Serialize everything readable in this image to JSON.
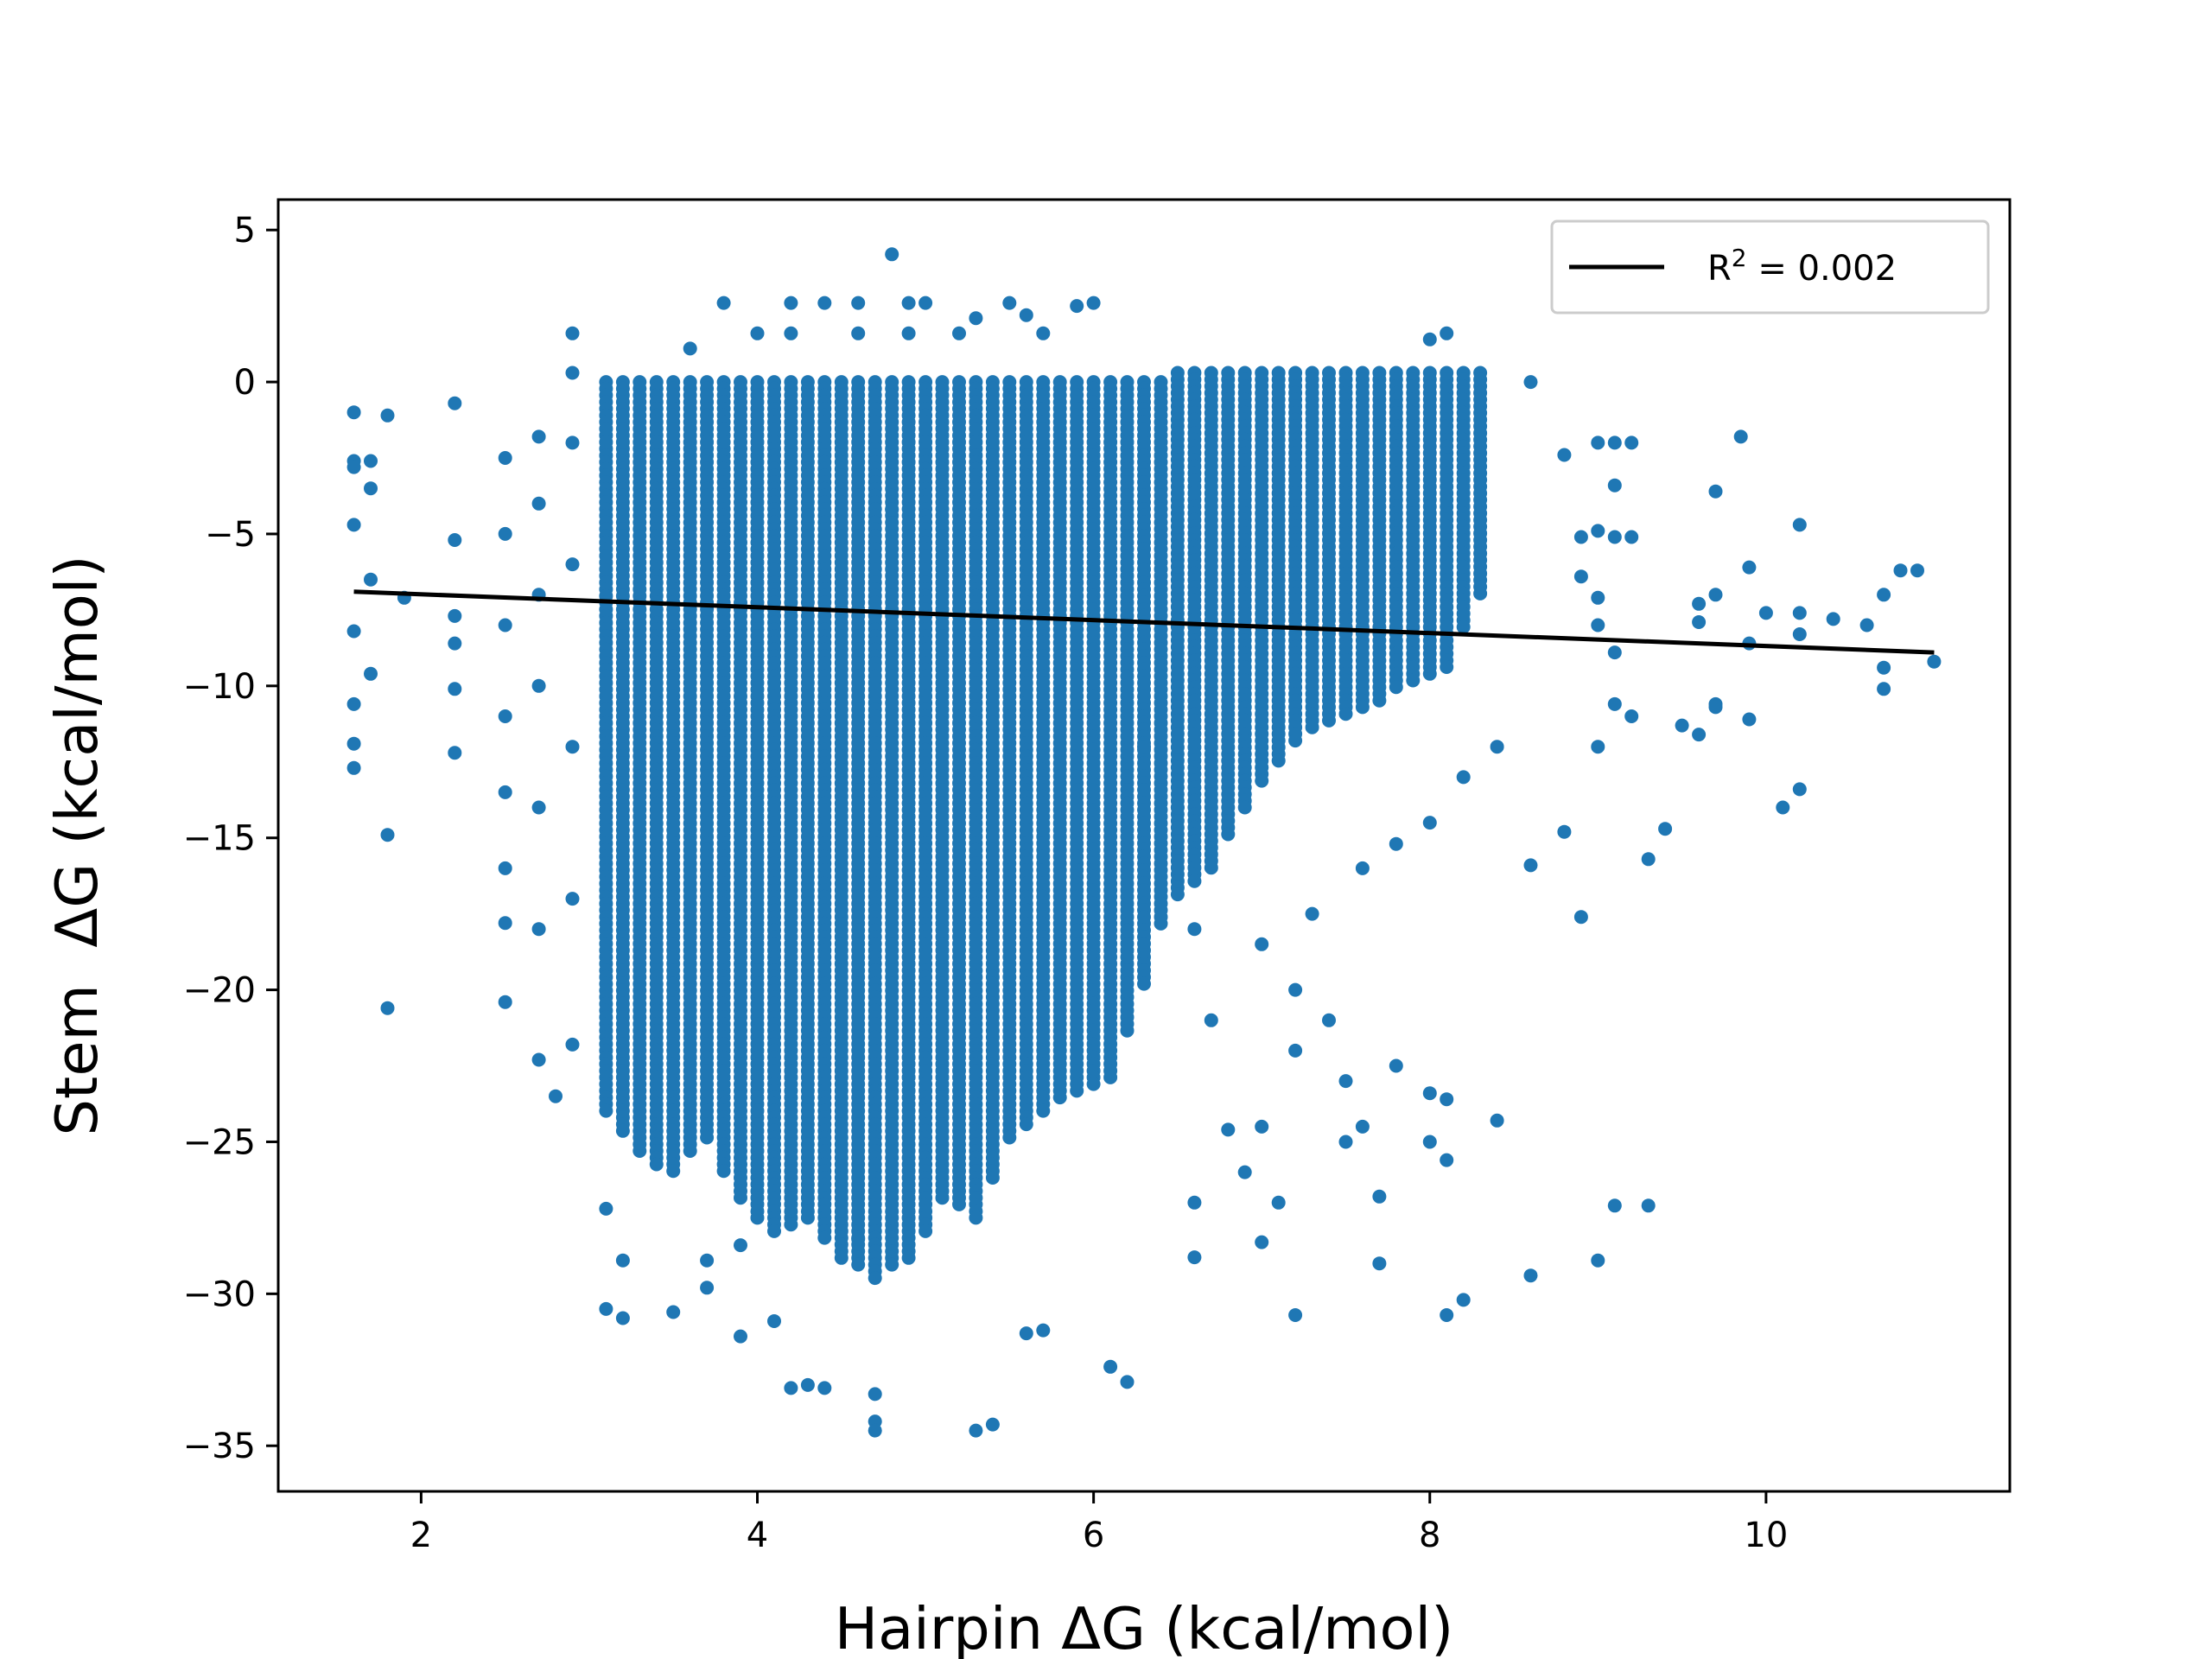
{
  "chart_data": {
    "type": "scatter",
    "title": "",
    "xlabel": "Hairpin ΔG (kcal/mol)",
    "ylabel": "Stem  ΔG (kcal/mol)",
    "xlim": [
      1.15,
      11.45
    ],
    "ylim": [
      -36.5,
      6.0
    ],
    "xticks": [
      2,
      4,
      6,
      8,
      10
    ],
    "yticks": [
      5,
      0,
      -5,
      -10,
      -15,
      -20,
      -25,
      -30,
      -35
    ],
    "xtick_labels": [
      "2",
      "4",
      "6",
      "8",
      "10"
    ],
    "ytick_labels": [
      "5",
      "0",
      "−5",
      "−10",
      "−15",
      "−20",
      "−25",
      "−30",
      "−35"
    ],
    "grid": false,
    "legend_position": "top-right",
    "legend": {
      "entries": [
        {
          "label_base": "R",
          "label_sup": "2",
          "label_rest": " = 0.002",
          "color": "#000000",
          "kind": "line"
        }
      ]
    },
    "series": [
      {
        "kind": "scatter",
        "color": "#1f77b4",
        "points": [
          [
            1.6,
            -1.0
          ],
          [
            1.6,
            -2.6
          ],
          [
            1.6,
            -2.8
          ],
          [
            1.6,
            -4.7
          ],
          [
            1.6,
            -8.2
          ],
          [
            1.6,
            -10.6
          ],
          [
            1.6,
            -11.9
          ],
          [
            1.6,
            -12.7
          ],
          [
            1.7,
            -2.6
          ],
          [
            1.7,
            -3.5
          ],
          [
            1.7,
            -6.5
          ],
          [
            1.7,
            -9.6
          ],
          [
            1.8,
            -1.1
          ],
          [
            1.8,
            -14.9
          ],
          [
            1.8,
            -20.6
          ],
          [
            1.9,
            -7.1
          ],
          [
            2.2,
            -0.7
          ],
          [
            2.2,
            -5.2
          ],
          [
            2.2,
            -7.7
          ],
          [
            2.2,
            -8.6
          ],
          [
            2.2,
            -10.1
          ],
          [
            2.2,
            -12.2
          ],
          [
            2.5,
            -2.5
          ],
          [
            2.5,
            -5.0
          ],
          [
            2.5,
            -8.0
          ],
          [
            2.5,
            -11.0
          ],
          [
            2.5,
            -13.5
          ],
          [
            2.5,
            -16.0
          ],
          [
            2.5,
            -17.8
          ],
          [
            2.5,
            -20.4
          ],
          [
            2.7,
            -1.8
          ],
          [
            2.7,
            -4.0
          ],
          [
            2.7,
            -7.0
          ],
          [
            2.7,
            -10.0
          ],
          [
            2.7,
            -14.0
          ],
          [
            2.7,
            -18.0
          ],
          [
            2.7,
            -22.3
          ],
          [
            2.9,
            1.6
          ],
          [
            2.9,
            0.3
          ],
          [
            2.9,
            -2.0
          ],
          [
            2.9,
            -6.0
          ],
          [
            2.9,
            -12.0
          ],
          [
            2.9,
            -17.0
          ],
          [
            2.9,
            -21.8
          ],
          [
            2.8,
            -23.5
          ],
          [
            3.9,
            -28.4
          ],
          [
            3.9,
            -31.4
          ],
          [
            4.1,
            -30.9
          ],
          [
            4.2,
            -33.1
          ],
          [
            4.3,
            -33.0
          ],
          [
            4.4,
            -33.1
          ],
          [
            4.7,
            -33.3
          ],
          [
            4.7,
            -34.2
          ],
          [
            4.7,
            -34.5
          ],
          [
            5.3,
            -34.5
          ],
          [
            5.4,
            -34.3
          ],
          [
            5.6,
            -31.3
          ],
          [
            5.7,
            -31.2
          ],
          [
            6.1,
            -32.4
          ],
          [
            6.2,
            -32.9
          ],
          [
            3.1,
            -30.5
          ],
          [
            3.2,
            -30.8
          ],
          [
            3.5,
            -30.6
          ],
          [
            3.1,
            -27.2
          ],
          [
            3.2,
            -28.9
          ],
          [
            3.7,
            -28.9
          ],
          [
            3.7,
            -29.8
          ],
          [
            4.6,
            -28.2
          ],
          [
            4.8,
            -4.2
          ],
          [
            3.8,
            2.6
          ],
          [
            4.2,
            2.6
          ],
          [
            4.4,
            2.6
          ],
          [
            4.6,
            2.6
          ],
          [
            4.9,
            2.6
          ],
          [
            5.0,
            2.6
          ],
          [
            5.5,
            2.6
          ],
          [
            5.9,
            2.5
          ],
          [
            6.0,
            2.6
          ],
          [
            5.3,
            2.1
          ],
          [
            5.6,
            2.2
          ],
          [
            3.6,
            1.1
          ],
          [
            4.0,
            1.6
          ],
          [
            4.2,
            1.6
          ],
          [
            4.6,
            1.6
          ],
          [
            4.9,
            1.6
          ],
          [
            5.2,
            1.6
          ],
          [
            5.7,
            1.6
          ],
          [
            4.8,
            4.2
          ],
          [
            6.3,
            -12.0
          ],
          [
            6.5,
            -14.0
          ],
          [
            6.6,
            -18.0
          ],
          [
            6.7,
            -21.0
          ],
          [
            6.8,
            -24.6
          ],
          [
            6.9,
            -26.0
          ],
          [
            7.0,
            -24.5
          ],
          [
            7.1,
            -27.0
          ],
          [
            7.2,
            -30.7
          ],
          [
            7.0,
            -28.3
          ],
          [
            7.5,
            -23.0
          ],
          [
            7.6,
            -24.5
          ],
          [
            7.7,
            -26.8
          ],
          [
            7.8,
            -22.5
          ],
          [
            8.0,
            -25.0
          ],
          [
            8.1,
            -25.6
          ],
          [
            8.1,
            -30.7
          ],
          [
            8.2,
            -30.2
          ],
          [
            8.0,
            -23.4
          ],
          [
            8.1,
            -23.6
          ],
          [
            8.4,
            -24.3
          ],
          [
            8.6,
            -29.4
          ],
          [
            9.0,
            -28.9
          ],
          [
            9.1,
            -27.1
          ],
          [
            9.3,
            -27.1
          ],
          [
            7.2,
            -20.0
          ],
          [
            7.4,
            -21.0
          ],
          [
            7.0,
            -18.5
          ],
          [
            7.3,
            -17.5
          ],
          [
            7.6,
            -16.0
          ],
          [
            7.8,
            -15.2
          ],
          [
            8.0,
            -14.5
          ],
          [
            8.2,
            -13.0
          ],
          [
            8.4,
            -12.0
          ],
          [
            8.6,
            -15.9
          ],
          [
            8.8,
            -14.8
          ],
          [
            8.9,
            -17.6
          ],
          [
            9.0,
            -12.0
          ],
          [
            9.1,
            -10.6
          ],
          [
            9.2,
            -11.0
          ],
          [
            9.3,
            -15.7
          ],
          [
            9.4,
            -14.7
          ],
          [
            9.5,
            -11.3
          ],
          [
            9.6,
            -11.6
          ],
          [
            9.7,
            -10.6
          ],
          [
            9.7,
            -10.7
          ],
          [
            9.9,
            -11.1
          ],
          [
            10.1,
            -14.0
          ],
          [
            10.2,
            -13.4
          ],
          [
            9.0,
            -8.0
          ],
          [
            9.1,
            -8.9
          ],
          [
            9.9,
            -8.6
          ],
          [
            10.0,
            -7.6
          ],
          [
            10.2,
            -7.6
          ],
          [
            10.2,
            -8.3
          ],
          [
            10.4,
            -7.8
          ],
          [
            10.6,
            -8.0
          ],
          [
            10.7,
            -9.4
          ],
          [
            10.7,
            -10.1
          ],
          [
            10.8,
            -6.2
          ],
          [
            10.9,
            -6.2
          ],
          [
            11.0,
            -9.2
          ],
          [
            10.7,
            -7.0
          ],
          [
            9.6,
            -7.3
          ],
          [
            9.6,
            -7.9
          ],
          [
            9.7,
            -7.0
          ],
          [
            9.0,
            -7.1
          ],
          [
            8.9,
            -6.4
          ],
          [
            8.9,
            -5.1
          ],
          [
            9.0,
            -4.9
          ],
          [
            9.1,
            -5.1
          ],
          [
            9.2,
            -5.1
          ],
          [
            9.1,
            -3.4
          ],
          [
            9.0,
            -2.0
          ],
          [
            9.1,
            -2.0
          ],
          [
            9.2,
            -2.0
          ],
          [
            8.8,
            -2.4
          ],
          [
            9.7,
            -3.6
          ],
          [
            9.85,
            -1.8
          ],
          [
            9.9,
            -6.1
          ],
          [
            10.2,
            -4.7
          ],
          [
            8.6,
            0.0
          ],
          [
            8.1,
            1.6
          ],
          [
            8.0,
            1.4
          ],
          [
            7.2,
            -22.0
          ],
          [
            7.5,
            -25.0
          ],
          [
            6.6,
            -28.8
          ],
          [
            6.6,
            -27.0
          ],
          [
            7.7,
            -29.0
          ]
        ],
        "dense_regions": [
          {
            "x_from": 3.1,
            "x_to": 6.4,
            "x_step": 0.1,
            "y_top": 0.0,
            "y_bottom_by_x": [
              [
                3.1,
                -24.0
              ],
              [
                3.3,
                -25.5
              ],
              [
                3.5,
                -26.0
              ],
              [
                3.7,
                -25.0
              ],
              [
                3.9,
                -27.0
              ],
              [
                4.1,
                -28.0
              ],
              [
                4.3,
                -27.5
              ],
              [
                4.5,
                -29.0
              ],
              [
                4.7,
                -29.5
              ],
              [
                4.9,
                -29.0
              ],
              [
                5.1,
                -27.0
              ],
              [
                5.3,
                -27.5
              ],
              [
                5.5,
                -25.0
              ],
              [
                5.7,
                -24.0
              ],
              [
                5.9,
                -23.5
              ],
              [
                6.1,
                -23.0
              ],
              [
                6.3,
                -20.0
              ],
              [
                6.4,
                -18.0
              ]
            ]
          },
          {
            "x_from": 6.5,
            "x_to": 8.3,
            "x_step": 0.1,
            "y_top": 0.3,
            "y_bottom_by_x": [
              [
                6.5,
                -17.0
              ],
              [
                6.7,
                -16.0
              ],
              [
                6.9,
                -14.0
              ],
              [
                7.1,
                -12.5
              ],
              [
                7.3,
                -11.5
              ],
              [
                7.5,
                -11.0
              ],
              [
                7.7,
                -10.5
              ],
              [
                7.9,
                -10.0
              ],
              [
                8.1,
                -9.5
              ],
              [
                8.3,
                -7.0
              ]
            ]
          }
        ]
      },
      {
        "kind": "line",
        "label_base": "R",
        "label_sup": "2",
        "label_rest": " = 0.002",
        "color": "#000000",
        "x": [
          1.6,
          11.0
        ],
        "y": [
          -6.9,
          -8.9
        ]
      }
    ]
  }
}
